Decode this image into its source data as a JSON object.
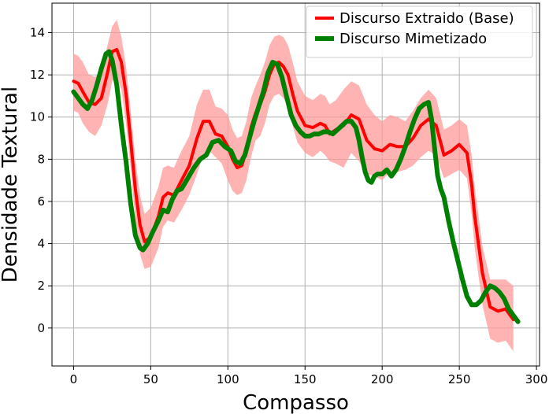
{
  "chart_data": {
    "type": "line",
    "xlabel": "Compasso",
    "ylabel": "Densidade Textural",
    "xlim": [
      -14,
      302
    ],
    "ylim": [
      -1.8,
      15.4
    ],
    "xticks": [
      0,
      50,
      100,
      150,
      200,
      250,
      300
    ],
    "yticks": [
      0,
      2,
      4,
      6,
      8,
      10,
      12,
      14
    ],
    "grid": true,
    "legend_position": "top-right",
    "series": [
      {
        "name": "Discurso Extraido (Base)",
        "color": "#ff0000",
        "band_color": "#ff9999",
        "x": [
          0,
          3,
          6,
          10,
          14,
          18,
          22,
          25,
          28,
          31,
          34,
          37,
          40,
          43,
          46,
          50,
          55,
          58,
          61,
          65,
          70,
          75,
          80,
          84,
          88,
          92,
          96,
          100,
          103,
          106,
          109,
          112,
          115,
          118,
          121,
          124,
          127,
          130,
          133,
          136,
          139,
          142,
          145,
          150,
          155,
          160,
          163,
          166,
          170,
          175,
          180,
          185,
          190,
          195,
          200,
          205,
          210,
          215,
          220,
          225,
          230,
          235,
          240,
          245,
          250,
          255,
          258,
          260,
          265,
          270,
          275,
          280,
          285
        ],
        "y": [
          11.7,
          11.6,
          11.2,
          10.7,
          10.6,
          10.9,
          12.1,
          13.1,
          13.2,
          12.6,
          11.1,
          8.9,
          6.6,
          4.9,
          4.1,
          4.3,
          5.3,
          6.2,
          6.4,
          6.3,
          7.0,
          7.7,
          9.0,
          9.8,
          9.8,
          9.2,
          9.1,
          8.6,
          8.0,
          7.6,
          7.7,
          8.4,
          9.5,
          10.2,
          10.6,
          11.2,
          12.0,
          12.5,
          12.6,
          12.4,
          12.0,
          11.1,
          10.3,
          9.6,
          9.5,
          9.7,
          9.6,
          9.2,
          9.4,
          9.6,
          10.1,
          9.9,
          8.9,
          8.5,
          8.4,
          8.7,
          8.6,
          8.6,
          9.0,
          9.6,
          9.9,
          9.6,
          8.2,
          8.4,
          8.7,
          8.3,
          6.8,
          5.3,
          2.6,
          1.0,
          0.8,
          0.9,
          0.4
        ],
        "y_lower": [
          10.3,
          10.2,
          9.7,
          9.3,
          9.1,
          9.6,
          10.6,
          11.7,
          11.9,
          11.3,
          9.7,
          7.6,
          5.2,
          3.5,
          2.8,
          2.9,
          3.8,
          4.8,
          5.1,
          5.0,
          5.6,
          6.3,
          7.3,
          8.2,
          8.4,
          8.1,
          7.8,
          7.0,
          6.5,
          6.3,
          6.4,
          7.0,
          8.1,
          8.9,
          9.1,
          9.7,
          10.6,
          11.0,
          11.1,
          10.9,
          10.5,
          9.6,
          8.8,
          8.3,
          8.1,
          8.4,
          8.2,
          7.9,
          7.8,
          7.6,
          8.3,
          7.9,
          7.3,
          7.2,
          7.0,
          7.4,
          7.4,
          7.5,
          7.7,
          8.1,
          8.4,
          8.2,
          7.1,
          7.3,
          7.5,
          7.1,
          5.4,
          3.8,
          1.1,
          -0.5,
          -0.7,
          -0.6,
          -1.1
        ],
        "y_upper": [
          13.0,
          12.9,
          12.6,
          12.0,
          11.9,
          12.2,
          13.4,
          14.3,
          14.6,
          13.8,
          12.4,
          10.3,
          8.0,
          6.3,
          5.4,
          5.7,
          6.7,
          7.6,
          7.7,
          7.6,
          8.4,
          9.1,
          10.6,
          11.3,
          11.3,
          10.5,
          10.4,
          10.1,
          9.4,
          9.0,
          9.1,
          9.8,
          10.9,
          11.5,
          12.0,
          12.6,
          13.4,
          13.8,
          13.9,
          13.8,
          13.4,
          12.6,
          11.7,
          11.0,
          10.8,
          11.1,
          11.0,
          10.6,
          10.8,
          11.3,
          11.7,
          11.5,
          10.6,
          10.1,
          9.8,
          10.1,
          10.0,
          9.8,
          10.3,
          10.9,
          11.3,
          10.9,
          9.4,
          9.6,
          9.9,
          9.6,
          8.2,
          6.7,
          3.9,
          2.3,
          2.3,
          2.3,
          2.0
        ]
      },
      {
        "name": "Discurso Mimetizado",
        "color": "#008000",
        "x": [
          0,
          3,
          6,
          9,
          12,
          15,
          18,
          21,
          23,
          25,
          28,
          31,
          34,
          37,
          40,
          43,
          45,
          48,
          51,
          55,
          58,
          61,
          64,
          67,
          70,
          74,
          78,
          82,
          86,
          90,
          94,
          98,
          102,
          105,
          108,
          111,
          114,
          117,
          120,
          123,
          126,
          129,
          132,
          135,
          138,
          141,
          144,
          147,
          150,
          153,
          156,
          159,
          162,
          165,
          168,
          171,
          174,
          177,
          180,
          183,
          185,
          187,
          189,
          191,
          193,
          195,
          197,
          200,
          203,
          206,
          209,
          212,
          215,
          218,
          221,
          224,
          227,
          230,
          232,
          234,
          236,
          238,
          240,
          243,
          246,
          249,
          252,
          255,
          258,
          261,
          264,
          267,
          270,
          273,
          276,
          279,
          282,
          285,
          288
        ],
        "y": [
          11.2,
          10.9,
          10.6,
          10.4,
          10.8,
          11.5,
          12.3,
          13.0,
          13.1,
          12.7,
          11.5,
          9.6,
          7.9,
          5.9,
          4.4,
          3.8,
          3.7,
          4.0,
          4.5,
          5.1,
          5.6,
          5.5,
          6.1,
          6.5,
          6.6,
          7.1,
          7.6,
          8.0,
          8.2,
          8.8,
          8.9,
          8.6,
          8.4,
          7.9,
          7.8,
          8.2,
          9.0,
          9.8,
          10.5,
          11.2,
          12.1,
          12.6,
          12.5,
          11.9,
          11.0,
          10.1,
          9.6,
          9.3,
          9.1,
          9.1,
          9.2,
          9.2,
          9.3,
          9.3,
          9.2,
          9.4,
          9.6,
          9.8,
          9.8,
          9.5,
          8.9,
          8.1,
          7.4,
          7.0,
          6.9,
          7.2,
          7.3,
          7.3,
          7.5,
          7.2,
          7.5,
          8.0,
          8.6,
          9.3,
          9.9,
          10.4,
          10.6,
          10.7,
          9.9,
          8.5,
          7.2,
          6.6,
          6.2,
          5.1,
          4.1,
          3.2,
          2.3,
          1.5,
          1.1,
          1.1,
          1.3,
          1.7,
          2.0,
          1.9,
          1.7,
          1.4,
          0.9,
          0.6,
          0.3
        ]
      }
    ]
  }
}
